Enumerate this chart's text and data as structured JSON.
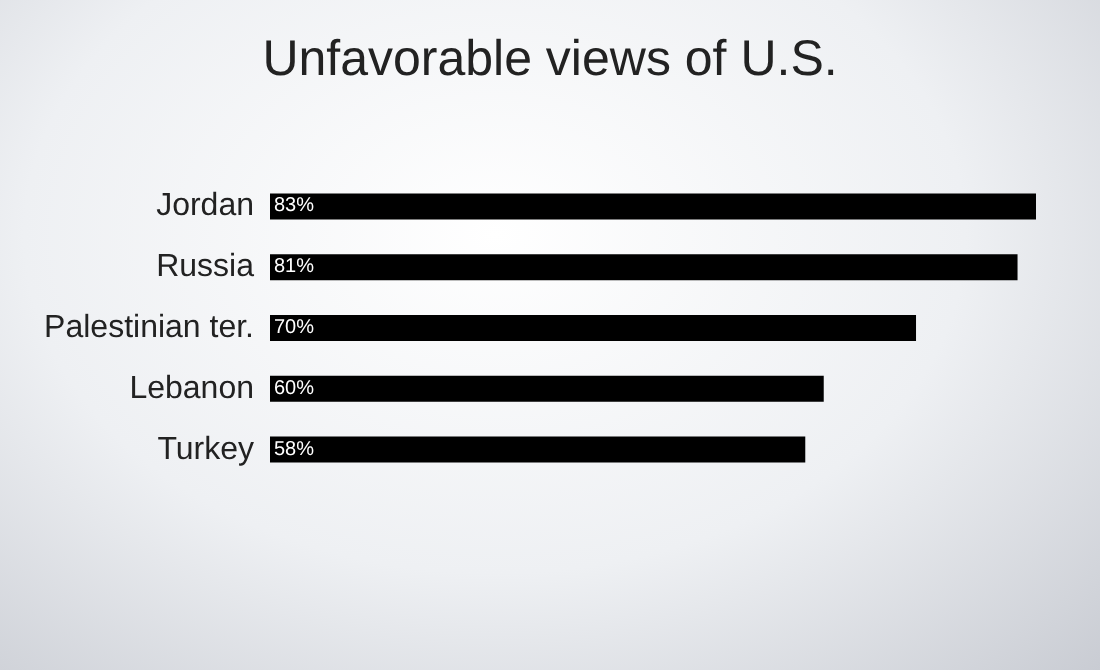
{
  "chart_data": {
    "type": "bar",
    "orientation": "horizontal",
    "title": "Unfavorable views of U.S.",
    "categories": [
      "Jordan",
      "Russia",
      "Palestinian ter.",
      "Lebanon",
      "Turkey"
    ],
    "values": [
      83,
      81,
      70,
      60,
      58
    ],
    "value_labels": [
      "83%",
      "81%",
      "70%",
      "60%",
      "58%"
    ],
    "color": "#000000"
  }
}
